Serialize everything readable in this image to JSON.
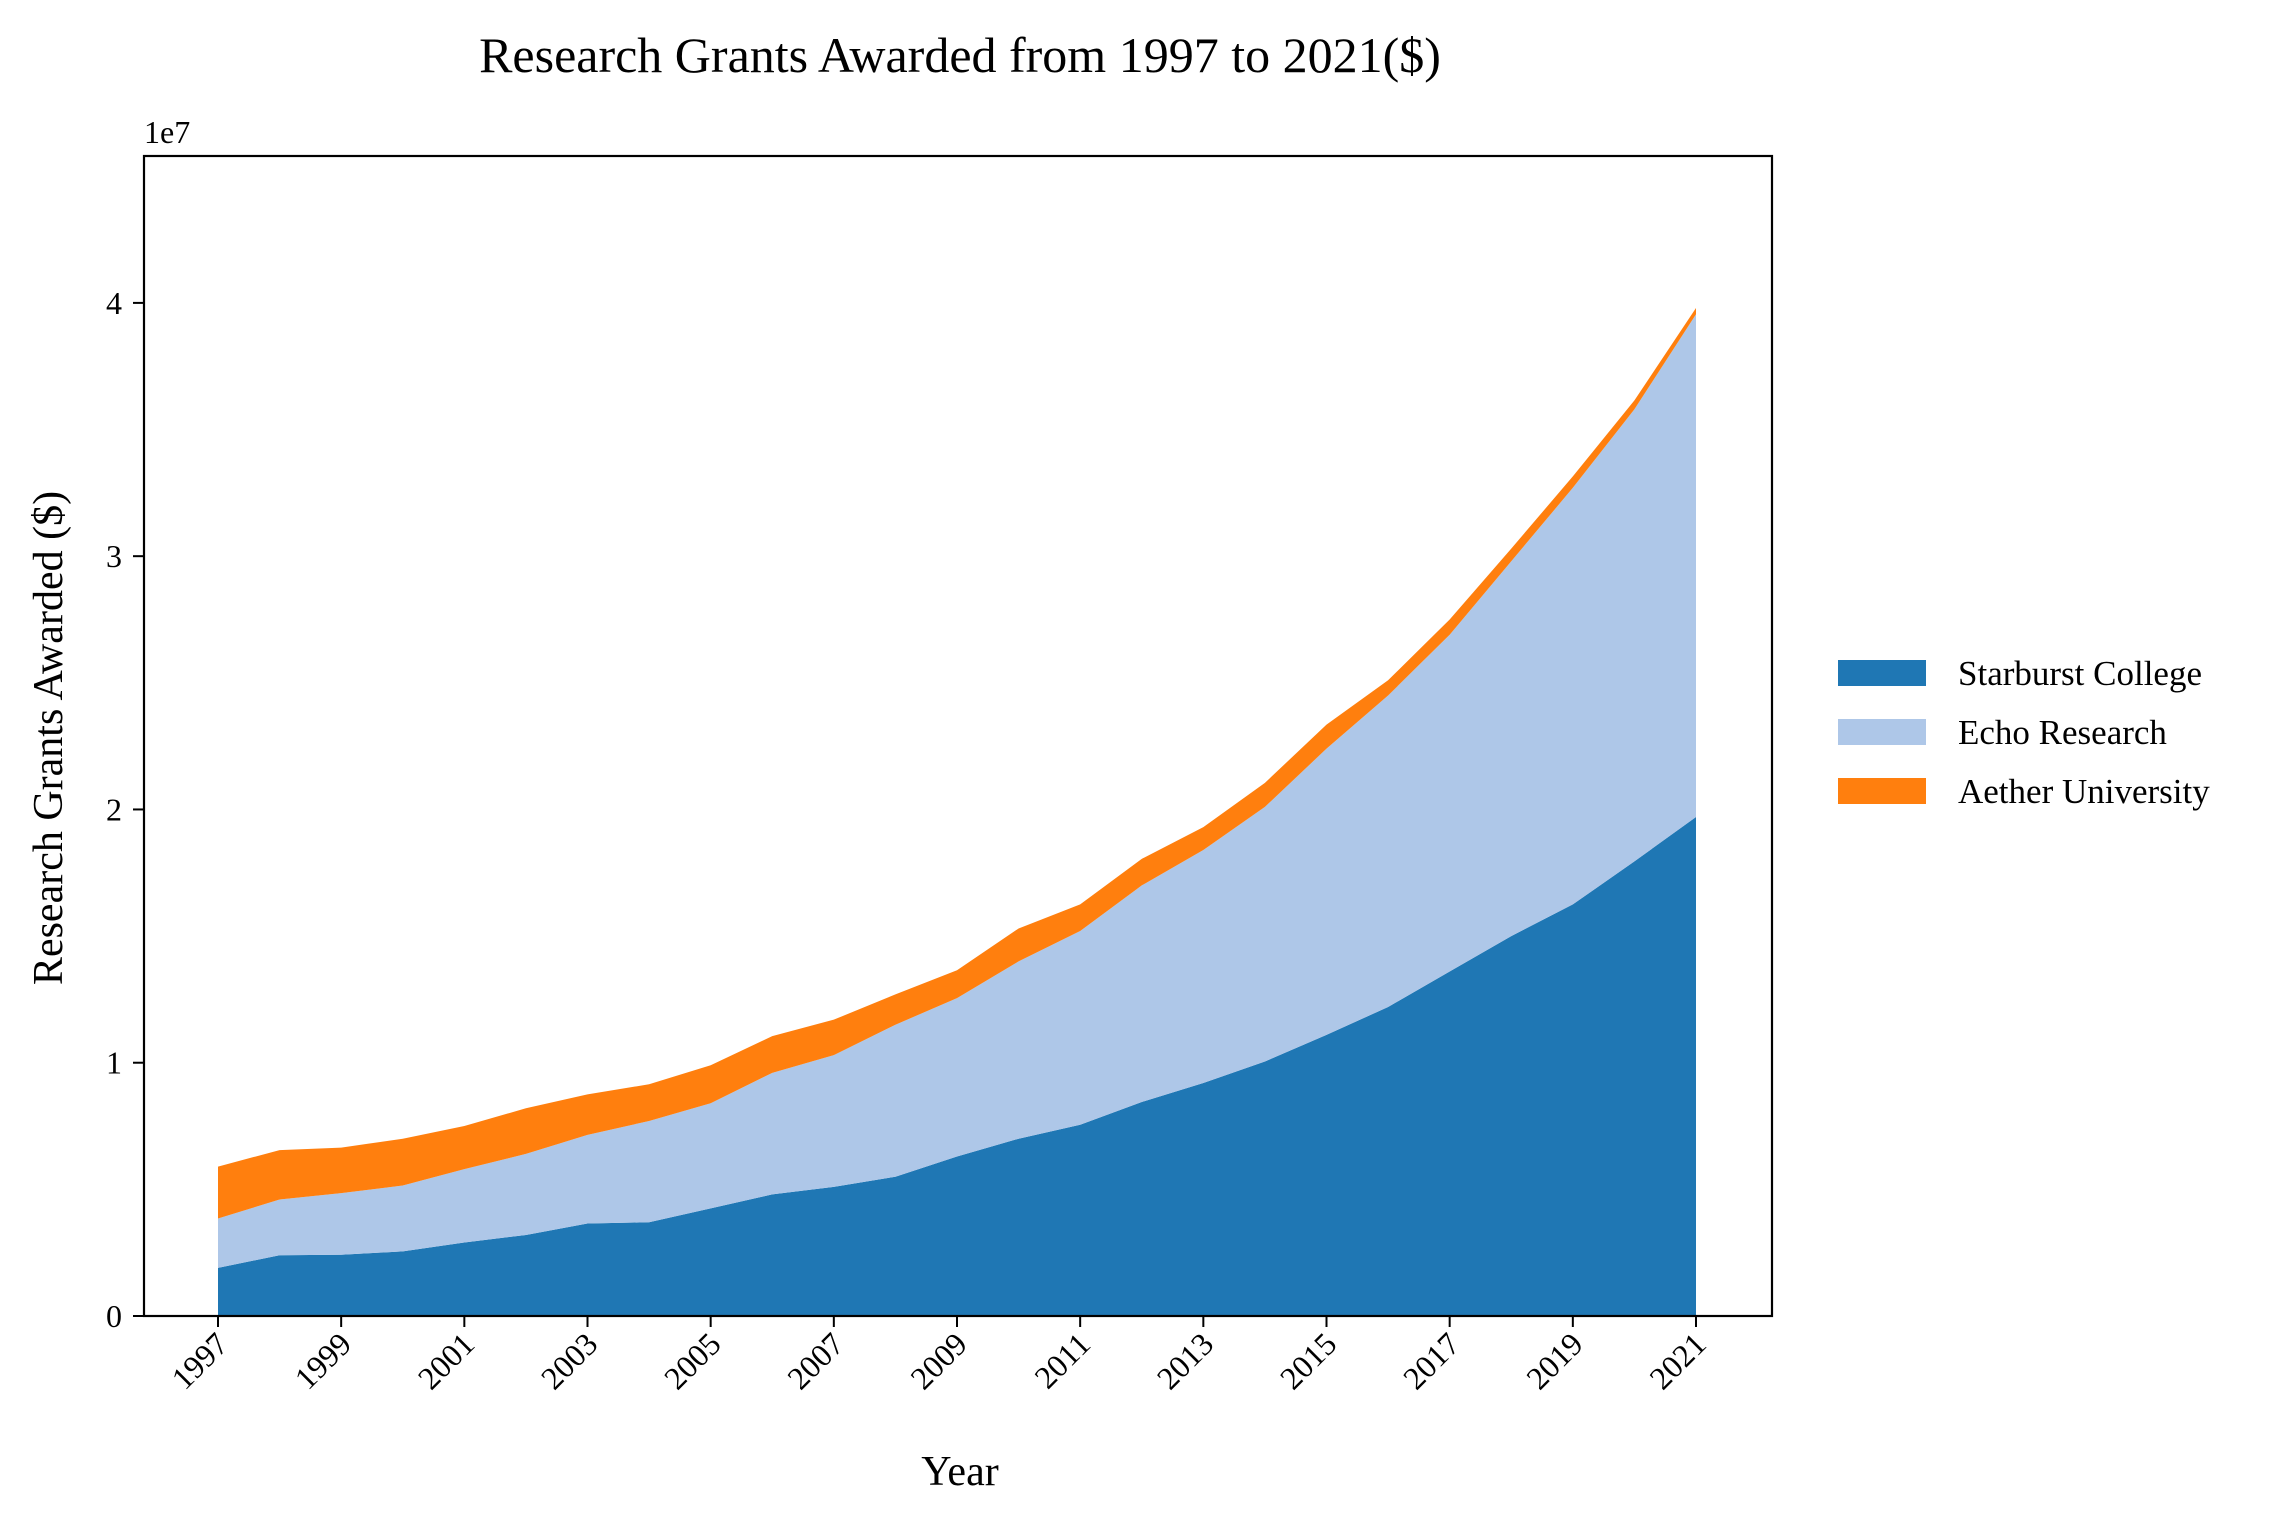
{
  "chart_data": {
    "type": "area",
    "stacked": true,
    "title": "Research Grants Awarded from 1997 to 2021($)",
    "xlabel": "Year",
    "ylabel": "Research Grants Awarded ($)",
    "y_offset_label": "1e7",
    "x": [
      1997,
      1998,
      1999,
      2000,
      2001,
      2002,
      2003,
      2004,
      2005,
      2006,
      2007,
      2008,
      2009,
      2010,
      2011,
      2012,
      2013,
      2014,
      2015,
      2016,
      2017,
      2018,
      2019,
      2020,
      2021
    ],
    "xticks": [
      "1997",
      "1999",
      "2001",
      "2003",
      "2005",
      "2007",
      "2009",
      "2011",
      "2013",
      "2015",
      "2017",
      "2019",
      "2021"
    ],
    "yticks": [
      0,
      10000000,
      20000000,
      30000000,
      40000000
    ],
    "ytick_labels": [
      "0",
      "1",
      "2",
      "3",
      "4"
    ],
    "ylim": [
      0,
      45800000
    ],
    "legend_position": "center-right",
    "grid": false,
    "series": [
      {
        "name": "Starburst College",
        "color": "#1f77b4",
        "values": [
          1900000,
          2400000,
          2420000,
          2550000,
          2900000,
          3200000,
          3650000,
          3700000,
          4250000,
          4800000,
          5100000,
          5500000,
          6300000,
          7000000,
          7550000,
          8450000,
          9200000,
          10050000,
          11100000,
          12200000,
          13600000,
          15000000,
          16250000,
          17950000,
          19700000
        ]
      },
      {
        "name": "Echo Research",
        "color": "#aec7e8",
        "values": [
          1950000,
          2200000,
          2430000,
          2600000,
          2900000,
          3200000,
          3500000,
          4000000,
          4150000,
          4800000,
          5200000,
          6000000,
          6250000,
          7000000,
          7650000,
          8550000,
          9200000,
          10050000,
          11300000,
          12300000,
          13300000,
          14800000,
          16450000,
          17850000,
          19850000
        ]
      },
      {
        "name": "Aether University",
        "color": "#ff7f0e",
        "values": [
          2050000,
          1950000,
          1800000,
          1850000,
          1700000,
          1800000,
          1600000,
          1450000,
          1500000,
          1450000,
          1400000,
          1200000,
          1100000,
          1300000,
          1050000,
          1050000,
          900000,
          950000,
          950000,
          600000,
          600000,
          500000,
          450000,
          350000,
          250000
        ]
      }
    ]
  }
}
